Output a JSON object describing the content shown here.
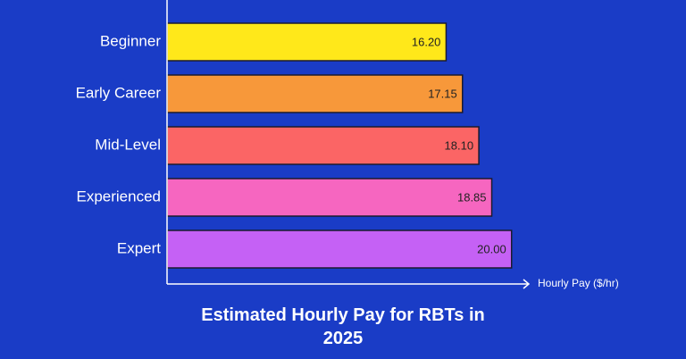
{
  "chart_data": {
    "type": "bar",
    "orientation": "horizontal",
    "title": "Estimated Hourly Pay for RBTs in 2025",
    "x_label": "Hourly Pay ($/hr)",
    "categories": [
      "Beginner",
      "Early Career",
      "Mid-Level",
      "Experienced",
      "Expert"
    ],
    "values": [
      16.2,
      17.15,
      18.1,
      18.85,
      20.0
    ],
    "value_labels": [
      "16.20",
      "17.15",
      "18.10",
      "18.85",
      "20.00"
    ],
    "colors": [
      "#ffe81a",
      "#f7983a",
      "#fb6565",
      "#f666c0",
      "#c561f5"
    ],
    "xlim": [
      0,
      21
    ]
  }
}
